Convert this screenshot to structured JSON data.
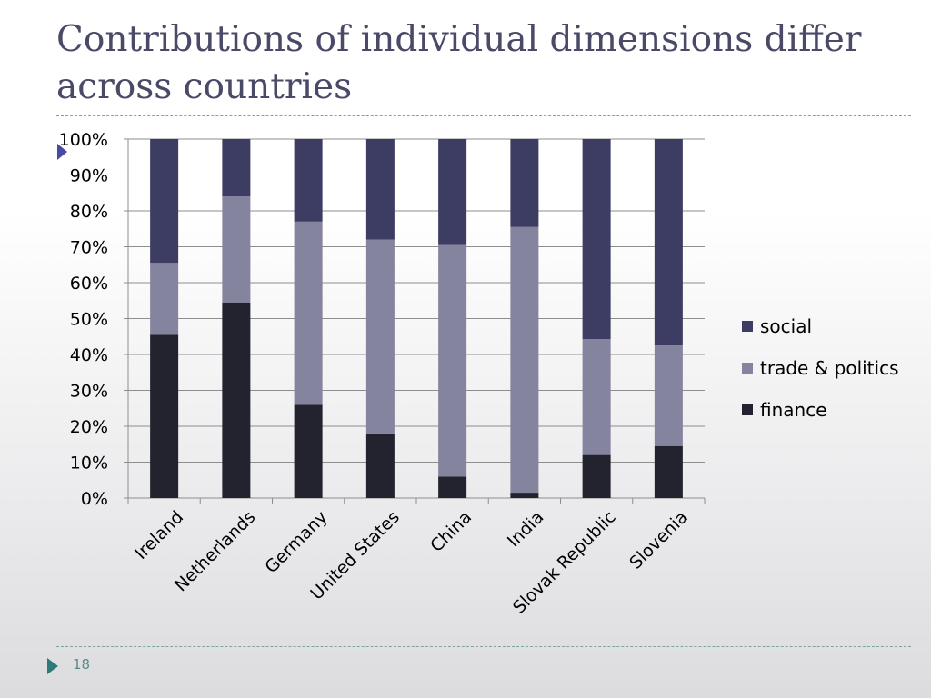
{
  "slide": {
    "title": "Contributions of individual dimensions differ across countries",
    "page_number": "18"
  },
  "colors": {
    "social": "#3d3d63",
    "trade_politics": "#84849f",
    "finance": "#23232f",
    "grid": "#8e8e8e",
    "axis": "#8e8e8e"
  },
  "chart_data": {
    "type": "bar",
    "stacked": true,
    "percent": true,
    "categories": [
      "Ireland",
      "Netherlands",
      "Germany",
      "United States",
      "China",
      "India",
      "Slovak Republic",
      "Slovenia"
    ],
    "series": [
      {
        "name": "finance",
        "values": [
          45.5,
          54.5,
          26.0,
          18.0,
          6.0,
          1.5,
          12.0,
          14.5
        ]
      },
      {
        "name": "trade & politics",
        "values": [
          20.0,
          29.5,
          51.0,
          54.0,
          64.5,
          74.0,
          32.3,
          28.0
        ]
      },
      {
        "name": "social",
        "values": [
          34.5,
          16.0,
          23.0,
          28.0,
          29.5,
          24.5,
          55.7,
          57.5
        ]
      }
    ],
    "legend_order": [
      "social",
      "trade & politics",
      "finance"
    ],
    "ylim": [
      0,
      100
    ],
    "yticks": [
      "0%",
      "10%",
      "20%",
      "30%",
      "40%",
      "50%",
      "60%",
      "70%",
      "80%",
      "90%",
      "100%"
    ],
    "grid": true,
    "legend_position": "right"
  }
}
